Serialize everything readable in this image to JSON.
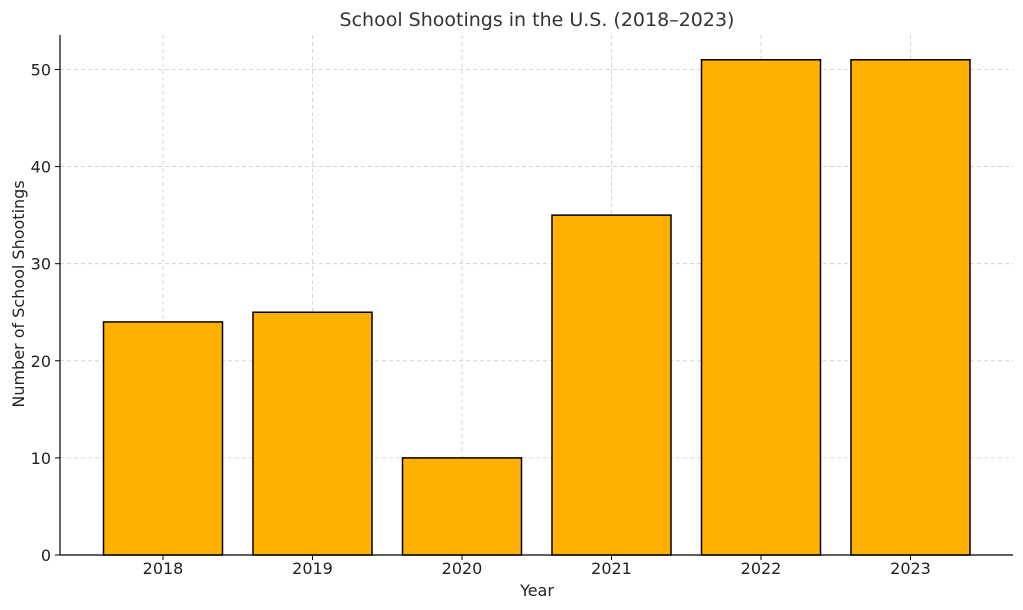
{
  "chart_data": {
    "type": "bar",
    "title": "School Shootings in the U.S. (2018–2023)",
    "xlabel": "Year",
    "ylabel": "Number of School Shootings",
    "categories": [
      "2018",
      "2019",
      "2020",
      "2021",
      "2022",
      "2023"
    ],
    "values": [
      24,
      25,
      10,
      35,
      51,
      51
    ],
    "ylim": [
      0,
      53.55
    ],
    "yticks": [
      0,
      10,
      20,
      30,
      40,
      50
    ],
    "grid": true,
    "colors": {
      "bar_fill": "#FFB000",
      "bar_edge": "#000000",
      "grid": "#cccccc"
    }
  }
}
